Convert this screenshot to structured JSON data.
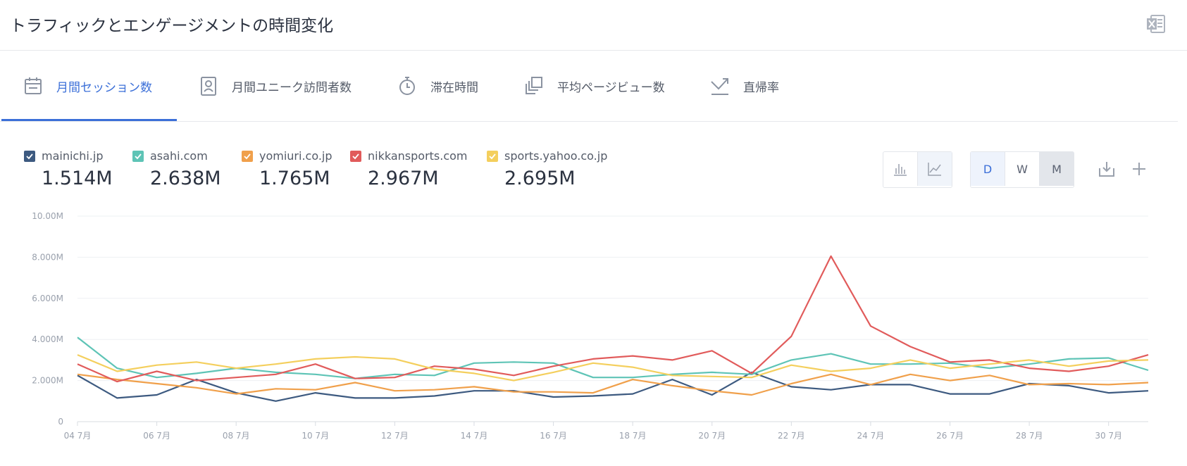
{
  "header": {
    "title": "トラフィックとエンゲージメントの時間変化"
  },
  "tabs": [
    {
      "label": "月間セッション数",
      "icon": "calendar-icon",
      "active": true
    },
    {
      "label": "月間ユニーク訪問者数",
      "icon": "visitor-badge-icon",
      "active": false
    },
    {
      "label": "滞在時間",
      "icon": "stopwatch-icon",
      "active": false
    },
    {
      "label": "平均ページビュー数",
      "icon": "pages-icon",
      "active": false
    },
    {
      "label": "直帰率",
      "icon": "bounce-arrow-icon",
      "active": false
    }
  ],
  "legend": [
    {
      "name": "mainichi.jp",
      "value": "1.514M",
      "color": "#3d5a80"
    },
    {
      "name": "asahi.com",
      "value": "2.638M",
      "color": "#5ec4b6"
    },
    {
      "name": "yomiuri.co.jp",
      "value": "1.765M",
      "color": "#f0a04b"
    },
    {
      "name": "nikkansports.com",
      "value": "2.967M",
      "color": "#e15b5b"
    },
    {
      "name": "sports.yahoo.co.jp",
      "value": "2.695M",
      "color": "#f4cf5d"
    }
  ],
  "controls": {
    "chart_type_icons": [
      "bar-chart-icon",
      "line-chart-icon"
    ],
    "granularity": [
      "D",
      "W",
      "M"
    ],
    "selected_granularity": "D",
    "download_icon": "download-icon",
    "add_icon": "plus-icon",
    "excel_icon": "excel-icon"
  },
  "chart_data": {
    "type": "line",
    "x": [
      "04 7月",
      "05 7月",
      "06 7月",
      "07 7月",
      "08 7月",
      "09 7月",
      "10 7月",
      "11 7月",
      "12 7月",
      "13 7月",
      "14 7月",
      "15 7月",
      "16 7月",
      "17 7月",
      "18 7月",
      "19 7月",
      "20 7月",
      "21 7月",
      "22 7月",
      "23 7月",
      "24 7月",
      "25 7月",
      "26 7月",
      "27 7月",
      "28 7月",
      "29 7月",
      "30 7月",
      "31 7月"
    ],
    "x_tick_labels": [
      "04 7月",
      "06 7月",
      "08 7月",
      "10 7月",
      "12 7月",
      "14 7月",
      "16 7月",
      "18 7月",
      "20 7月",
      "22 7月",
      "24 7月",
      "26 7月",
      "28 7月",
      "30 7月"
    ],
    "y_ticks": [
      0,
      2000000,
      4000000,
      6000000,
      8000000,
      10000000
    ],
    "y_tick_labels": [
      "0",
      "2.000M",
      "4.000M",
      "6.000M",
      "8.000M",
      "10.00M"
    ],
    "ylim": [
      0,
      10000000
    ],
    "grid": true,
    "series": [
      {
        "name": "mainichi.jp",
        "color": "#3d5a80",
        "values": [
          2250000,
          1150000,
          1300000,
          2050000,
          1400000,
          1000000,
          1400000,
          1150000,
          1150000,
          1250000,
          1500000,
          1500000,
          1200000,
          1250000,
          1350000,
          2050000,
          1300000,
          2400000,
          1700000,
          1550000,
          1800000,
          1800000,
          1350000,
          1350000,
          1850000,
          1750000,
          1400000,
          1500000
        ]
      },
      {
        "name": "asahi.com",
        "color": "#5ec4b6",
        "values": [
          4100000,
          2600000,
          2150000,
          2350000,
          2600000,
          2400000,
          2300000,
          2100000,
          2300000,
          2250000,
          2850000,
          2900000,
          2850000,
          2150000,
          2150000,
          2300000,
          2400000,
          2300000,
          3000000,
          3300000,
          2800000,
          2800000,
          2850000,
          2600000,
          2800000,
          3050000,
          3100000,
          2500000
        ]
      },
      {
        "name": "yomiuri.co.jp",
        "color": "#f0a04b",
        "values": [
          2300000,
          2050000,
          1850000,
          1650000,
          1350000,
          1600000,
          1550000,
          1900000,
          1500000,
          1550000,
          1700000,
          1450000,
          1450000,
          1400000,
          2050000,
          1750000,
          1500000,
          1300000,
          1850000,
          2300000,
          1800000,
          2300000,
          2000000,
          2250000,
          1800000,
          1850000,
          1800000,
          1900000
        ]
      },
      {
        "name": "nikkansports.com",
        "color": "#e15b5b",
        "values": [
          2800000,
          1950000,
          2450000,
          2000000,
          2150000,
          2300000,
          2800000,
          2100000,
          2150000,
          2700000,
          2550000,
          2250000,
          2700000,
          3050000,
          3200000,
          3000000,
          3450000,
          2350000,
          4150000,
          8050000,
          4650000,
          3650000,
          2900000,
          3000000,
          2600000,
          2450000,
          2700000,
          3250000
        ]
      },
      {
        "name": "sports.yahoo.co.jp",
        "color": "#f4cf5d",
        "values": [
          3250000,
          2450000,
          2750000,
          2900000,
          2600000,
          2800000,
          3050000,
          3150000,
          3050000,
          2550000,
          2350000,
          2000000,
          2400000,
          2850000,
          2650000,
          2250000,
          2200000,
          2150000,
          2750000,
          2450000,
          2600000,
          3000000,
          2600000,
          2800000,
          3000000,
          2700000,
          2950000,
          3000000
        ]
      }
    ]
  }
}
